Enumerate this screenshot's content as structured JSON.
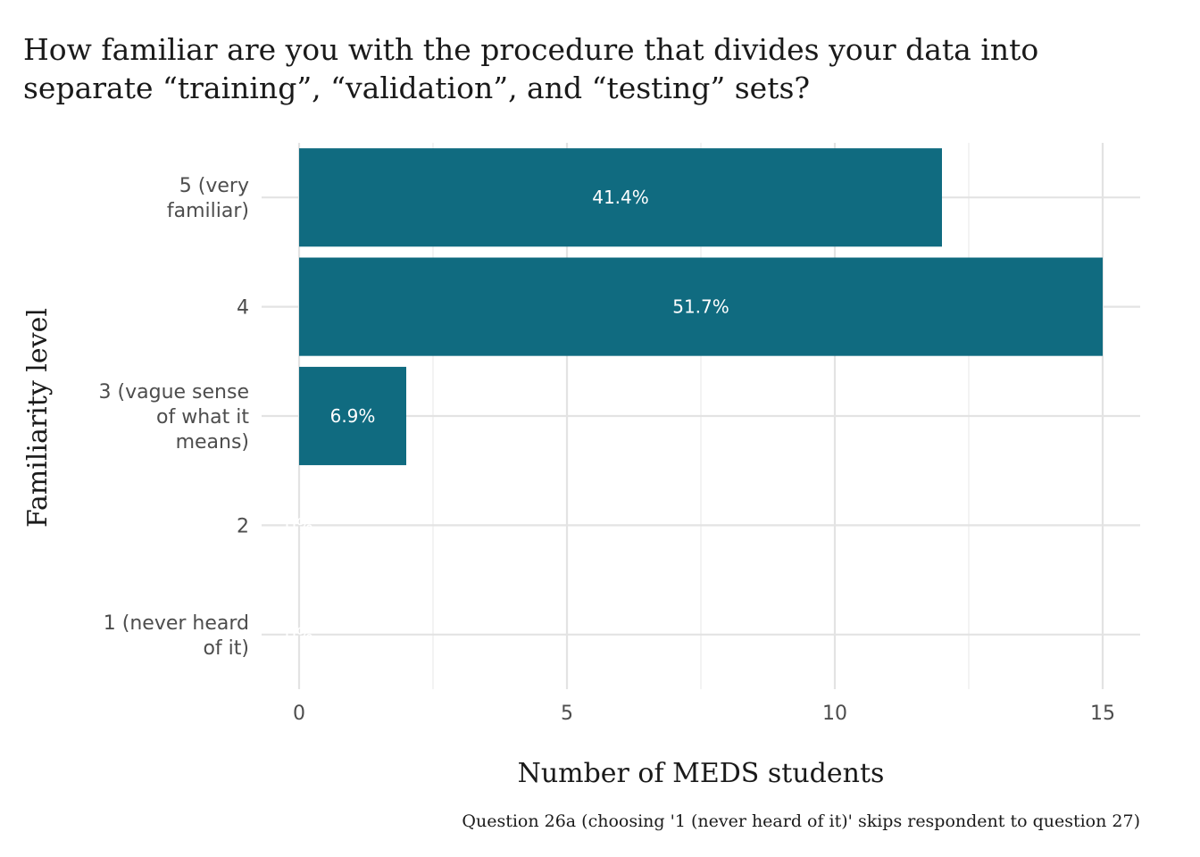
{
  "title_lines": [
    "How familiar are you with the procedure that divides your data into",
    "separate “training”, “validation”, and “testing” sets?"
  ],
  "chart_data": {
    "type": "bar",
    "orientation": "horizontal",
    "categories": [
      "5 (very familiar)",
      "4",
      "3 (vague sense of what it means)",
      "2",
      "1 (never heard of it)"
    ],
    "category_label_lines": [
      [
        "5 (very",
        "familiar)"
      ],
      [
        "4"
      ],
      [
        "3 (vague sense",
        "of what it",
        "means)"
      ],
      [
        "2"
      ],
      [
        "1 (never heard",
        "of it)"
      ]
    ],
    "values": [
      12,
      15,
      2,
      0,
      0
    ],
    "data_labels": [
      "41.4%",
      "51.7%",
      "6.9%",
      "0%",
      "0%"
    ],
    "xlabel": "Number of MEDS students",
    "ylabel": "Familiarity level",
    "xlim": [
      -0.7,
      15.7
    ],
    "x_ticks": [
      0,
      5,
      10,
      15
    ],
    "grid": true,
    "bar_color": "#106b80",
    "caption": "Question 26a (choosing '1 (never heard of it)' skips respondent to question 27)"
  }
}
